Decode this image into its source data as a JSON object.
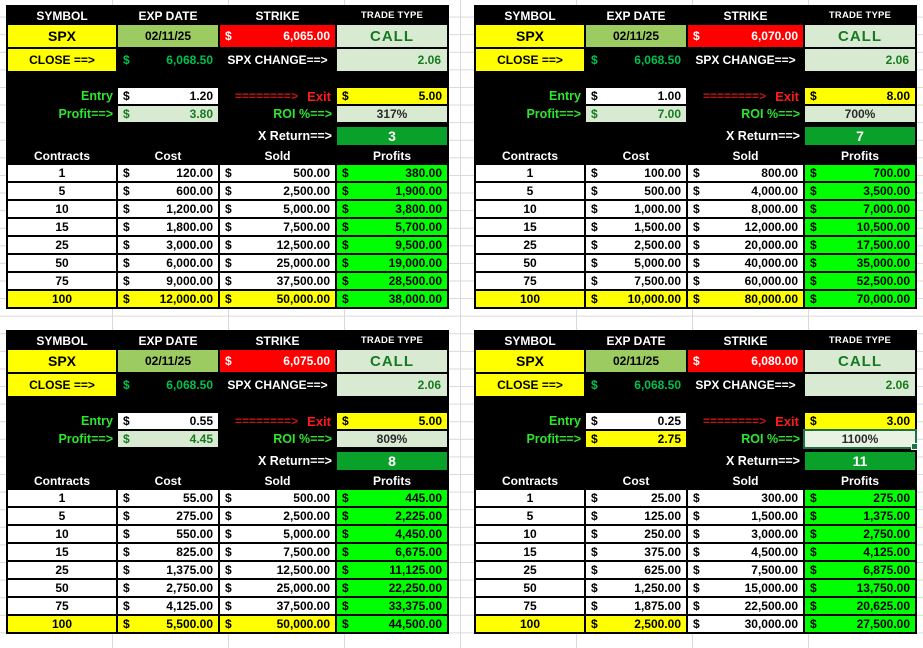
{
  "labels": {
    "symbol": "SYMBOL",
    "exp_date": "EXP DATE",
    "strike": "STRIKE",
    "trade_type": "TRADE TYPE",
    "close": "CLOSE ==>",
    "spx_change": "SPX CHANGE==>",
    "entry": "Entry",
    "arrow": "========>",
    "exit": "Exit",
    "profit": "Profit==>",
    "roi": "ROI %==>",
    "x_return": "X Return==>",
    "contracts": "Contracts",
    "cost": "Cost",
    "sold": "Sold",
    "profits": "Profits",
    "dollar": "$"
  },
  "colors": {
    "yellow": "#FFFF00",
    "red": "#FF0000",
    "date_green": "#9CCB61",
    "pale_green": "#D9EAD3",
    "bright_green": "#00FF00",
    "dark_green_text": "#177A1F",
    "x_return_green": "#09A129",
    "label_green": "#2DE52D",
    "money_green": "#00C050",
    "selection_green": "#1E7145"
  },
  "panels": [
    {
      "symbol": "SPX",
      "exp_date": "02/11/25",
      "strike": "6,065.00",
      "trade_type": "CALL",
      "close": "6,068.50",
      "spx_change": "2.06",
      "entry": "1.20",
      "exit": "5.00",
      "profit": "3.80",
      "roi": "317%",
      "x_return": "3",
      "profit_yellow": false,
      "roi_selected": false,
      "sold100_white": false,
      "rows": [
        {
          "contracts": "1",
          "cost": "120.00",
          "sold": "500.00",
          "profit": "380.00"
        },
        {
          "contracts": "5",
          "cost": "600.00",
          "sold": "2,500.00",
          "profit": "1,900.00"
        },
        {
          "contracts": "10",
          "cost": "1,200.00",
          "sold": "5,000.00",
          "profit": "3,800.00"
        },
        {
          "contracts": "15",
          "cost": "1,800.00",
          "sold": "7,500.00",
          "profit": "5,700.00"
        },
        {
          "contracts": "25",
          "cost": "3,000.00",
          "sold": "12,500.00",
          "profit": "9,500.00"
        },
        {
          "contracts": "50",
          "cost": "6,000.00",
          "sold": "25,000.00",
          "profit": "19,000.00"
        },
        {
          "contracts": "75",
          "cost": "9,000.00",
          "sold": "37,500.00",
          "profit": "28,500.00"
        },
        {
          "contracts": "100",
          "cost": "12,000.00",
          "sold": "50,000.00",
          "profit": "38,000.00"
        }
      ]
    },
    {
      "symbol": "SPX",
      "exp_date": "02/11/25",
      "strike": "6,070.00",
      "trade_type": "CALL",
      "close": "6,068.50",
      "spx_change": "2.06",
      "entry": "1.00",
      "exit": "8.00",
      "profit": "7.00",
      "roi": "700%",
      "x_return": "7",
      "profit_yellow": false,
      "roi_selected": false,
      "sold100_white": false,
      "rows": [
        {
          "contracts": "1",
          "cost": "100.00",
          "sold": "800.00",
          "profit": "700.00"
        },
        {
          "contracts": "5",
          "cost": "500.00",
          "sold": "4,000.00",
          "profit": "3,500.00"
        },
        {
          "contracts": "10",
          "cost": "1,000.00",
          "sold": "8,000.00",
          "profit": "7,000.00"
        },
        {
          "contracts": "15",
          "cost": "1,500.00",
          "sold": "12,000.00",
          "profit": "10,500.00"
        },
        {
          "contracts": "25",
          "cost": "2,500.00",
          "sold": "20,000.00",
          "profit": "17,500.00"
        },
        {
          "contracts": "50",
          "cost": "5,000.00",
          "sold": "40,000.00",
          "profit": "35,000.00"
        },
        {
          "contracts": "75",
          "cost": "7,500.00",
          "sold": "60,000.00",
          "profit": "52,500.00"
        },
        {
          "contracts": "100",
          "cost": "10,000.00",
          "sold": "80,000.00",
          "profit": "70,000.00"
        }
      ]
    },
    {
      "symbol": "SPX",
      "exp_date": "02/11/25",
      "strike": "6,075.00",
      "trade_type": "CALL",
      "close": "6,068.50",
      "spx_change": "2.06",
      "entry": "0.55",
      "exit": "5.00",
      "profit": "4.45",
      "roi": "809%",
      "x_return": "8",
      "profit_yellow": false,
      "roi_selected": false,
      "sold100_white": false,
      "rows": [
        {
          "contracts": "1",
          "cost": "55.00",
          "sold": "500.00",
          "profit": "445.00"
        },
        {
          "contracts": "5",
          "cost": "275.00",
          "sold": "2,500.00",
          "profit": "2,225.00"
        },
        {
          "contracts": "10",
          "cost": "550.00",
          "sold": "5,000.00",
          "profit": "4,450.00"
        },
        {
          "contracts": "15",
          "cost": "825.00",
          "sold": "7,500.00",
          "profit": "6,675.00"
        },
        {
          "contracts": "25",
          "cost": "1,375.00",
          "sold": "12,500.00",
          "profit": "11,125.00"
        },
        {
          "contracts": "50",
          "cost": "2,750.00",
          "sold": "25,000.00",
          "profit": "22,250.00"
        },
        {
          "contracts": "75",
          "cost": "4,125.00",
          "sold": "37,500.00",
          "profit": "33,375.00"
        },
        {
          "contracts": "100",
          "cost": "5,500.00",
          "sold": "50,000.00",
          "profit": "44,500.00"
        }
      ]
    },
    {
      "symbol": "SPX",
      "exp_date": "02/11/25",
      "strike": "6,080.00",
      "trade_type": "CALL",
      "close": "6,068.50",
      "spx_change": "2.06",
      "entry": "0.25",
      "exit": "3.00",
      "profit": "2.75",
      "roi": "1100%",
      "x_return": "11",
      "profit_yellow": true,
      "roi_selected": true,
      "sold100_white": true,
      "rows": [
        {
          "contracts": "1",
          "cost": "25.00",
          "sold": "300.00",
          "profit": "275.00"
        },
        {
          "contracts": "5",
          "cost": "125.00",
          "sold": "1,500.00",
          "profit": "1,375.00"
        },
        {
          "contracts": "10",
          "cost": "250.00",
          "sold": "3,000.00",
          "profit": "2,750.00"
        },
        {
          "contracts": "15",
          "cost": "375.00",
          "sold": "4,500.00",
          "profit": "4,125.00"
        },
        {
          "contracts": "25",
          "cost": "625.00",
          "sold": "7,500.00",
          "profit": "6,875.00"
        },
        {
          "contracts": "50",
          "cost": "1,250.00",
          "sold": "15,000.00",
          "profit": "13,750.00"
        },
        {
          "contracts": "75",
          "cost": "1,875.00",
          "sold": "22,500.00",
          "profit": "20,625.00"
        },
        {
          "contracts": "100",
          "cost": "2,500.00",
          "sold": "30,000.00",
          "profit": "27,500.00"
        }
      ]
    }
  ]
}
